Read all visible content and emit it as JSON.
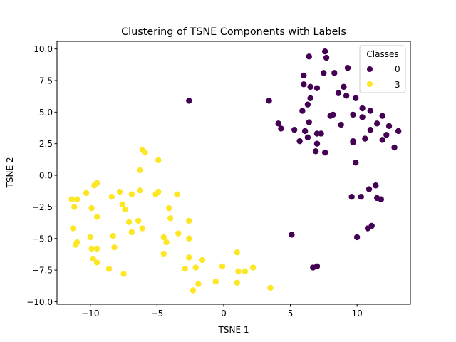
{
  "chart_data": {
    "type": "scatter",
    "title": "Clustering of TSNE Components with Labels",
    "xlabel": "TSNE 1",
    "ylabel": "TSNE 2",
    "xlim": [
      -12.5,
      14.0
    ],
    "ylim": [
      -10.2,
      10.6
    ],
    "xticks": [
      -10,
      -5,
      0,
      5,
      10
    ],
    "yticks": [
      -10.0,
      -7.5,
      -5.0,
      -2.5,
      0.0,
      2.5,
      5.0,
      7.5,
      10.0
    ],
    "xtick_labels": [
      "−10",
      "−5",
      "0",
      "5",
      "10"
    ],
    "ytick_labels": [
      "−10.0",
      "−7.5",
      "−5.0",
      "−2.5",
      "0.0",
      "2.5",
      "5.0",
      "7.5",
      "10.0"
    ],
    "grid": false,
    "legend": {
      "title": "Classes",
      "placement": "top-right"
    },
    "series": [
      {
        "name": "0",
        "color": "#440154",
        "points": [
          [
            -2.6,
            5.9
          ],
          [
            3.4,
            5.9
          ],
          [
            6.4,
            9.4
          ],
          [
            7.6,
            9.8
          ],
          [
            7.7,
            9.3
          ],
          [
            6.0,
            7.9
          ],
          [
            8.3,
            8.1
          ],
          [
            7.5,
            8.1
          ],
          [
            9.3,
            8.5
          ],
          [
            6.0,
            7.2
          ],
          [
            6.5,
            7.0
          ],
          [
            7.0,
            6.9
          ],
          [
            9.0,
            7.0
          ],
          [
            6.5,
            6.1
          ],
          [
            8.6,
            6.5
          ],
          [
            9.2,
            6.3
          ],
          [
            9.9,
            6.1
          ],
          [
            6.3,
            5.6
          ],
          [
            5.9,
            5.1
          ],
          [
            10.4,
            5.3
          ],
          [
            11.0,
            5.1
          ],
          [
            9.7,
            4.8
          ],
          [
            10.4,
            4.6
          ],
          [
            8.0,
            4.7
          ],
          [
            8.2,
            4.8
          ],
          [
            11.9,
            4.7
          ],
          [
            4.1,
            4.1
          ],
          [
            6.4,
            4.2
          ],
          [
            8.8,
            4.0
          ],
          [
            11.5,
            4.1
          ],
          [
            12.4,
            3.9
          ],
          [
            4.3,
            3.7
          ],
          [
            5.3,
            3.6
          ],
          [
            6.1,
            3.5
          ],
          [
            11.0,
            3.6
          ],
          [
            13.1,
            3.5
          ],
          [
            7.0,
            3.3
          ],
          [
            7.3,
            3.3
          ],
          [
            12.2,
            3.2
          ],
          [
            6.3,
            3.0
          ],
          [
            10.6,
            2.9
          ],
          [
            5.7,
            2.7
          ],
          [
            9.7,
            2.7
          ],
          [
            9.7,
            2.6
          ],
          [
            11.9,
            2.8
          ],
          [
            7.0,
            2.5
          ],
          [
            12.8,
            2.2
          ],
          [
            6.9,
            1.9
          ],
          [
            7.6,
            1.8
          ],
          [
            9.9,
            1.0
          ],
          [
            11.4,
            -0.8
          ],
          [
            10.9,
            -1.1
          ],
          [
            9.6,
            -1.7
          ],
          [
            10.3,
            -1.7
          ],
          [
            11.5,
            -1.8
          ],
          [
            11.8,
            -1.9
          ],
          [
            11.1,
            -4.0
          ],
          [
            10.8,
            -4.2
          ],
          [
            5.1,
            -4.7
          ],
          [
            10.0,
            -4.9
          ],
          [
            7.0,
            -7.2
          ],
          [
            6.7,
            -7.3
          ]
        ]
      },
      {
        "name": "3",
        "color": "#fde725",
        "points": [
          [
            -6.1,
            2.0
          ],
          [
            -5.9,
            1.8
          ],
          [
            -4.9,
            1.2
          ],
          [
            -6.3,
            0.4
          ],
          [
            -9.5,
            -0.6
          ],
          [
            -9.7,
            -0.8
          ],
          [
            -10.3,
            -1.4
          ],
          [
            -7.8,
            -1.3
          ],
          [
            -6.9,
            -1.5
          ],
          [
            -6.3,
            -1.2
          ],
          [
            -4.9,
            -1.3
          ],
          [
            -5.1,
            -1.5
          ],
          [
            -3.5,
            -1.5
          ],
          [
            -8.4,
            -1.7
          ],
          [
            -11.4,
            -1.9
          ],
          [
            -11.0,
            -1.9
          ],
          [
            -7.6,
            -2.3
          ],
          [
            -11.2,
            -2.5
          ],
          [
            -9.9,
            -2.6
          ],
          [
            -7.4,
            -2.7
          ],
          [
            -4.1,
            -2.6
          ],
          [
            -9.5,
            -3.3
          ],
          [
            -4.0,
            -3.4
          ],
          [
            -6.4,
            -3.6
          ],
          [
            -7.1,
            -3.7
          ],
          [
            -2.6,
            -3.6
          ],
          [
            -11.3,
            -4.2
          ],
          [
            -6.1,
            -4.2
          ],
          [
            -6.9,
            -4.5
          ],
          [
            -3.4,
            -4.6
          ],
          [
            -10.0,
            -4.9
          ],
          [
            -8.3,
            -4.8
          ],
          [
            -4.5,
            -4.9
          ],
          [
            -2.6,
            -5.0
          ],
          [
            -4.3,
            -5.3
          ],
          [
            -11.0,
            -5.3
          ],
          [
            -11.1,
            -5.5
          ],
          [
            -9.9,
            -5.8
          ],
          [
            -9.5,
            -5.8
          ],
          [
            -8.2,
            -5.7
          ],
          [
            -4.5,
            -6.2
          ],
          [
            -2.6,
            -6.5
          ],
          [
            1.0,
            -6.1
          ],
          [
            -9.8,
            -6.6
          ],
          [
            -9.5,
            -6.9
          ],
          [
            -1.6,
            -6.7
          ],
          [
            -8.6,
            -7.4
          ],
          [
            -7.5,
            -7.8
          ],
          [
            -2.1,
            -7.3
          ],
          [
            -2.9,
            -7.4
          ],
          [
            -0.1,
            -7.2
          ],
          [
            1.1,
            -7.6
          ],
          [
            1.6,
            -7.6
          ],
          [
            2.2,
            -7.3
          ],
          [
            -1.9,
            -8.6
          ],
          [
            -0.6,
            -8.4
          ],
          [
            1.0,
            -8.5
          ],
          [
            3.5,
            -8.9
          ],
          [
            -2.3,
            -9.1
          ]
        ]
      }
    ]
  }
}
